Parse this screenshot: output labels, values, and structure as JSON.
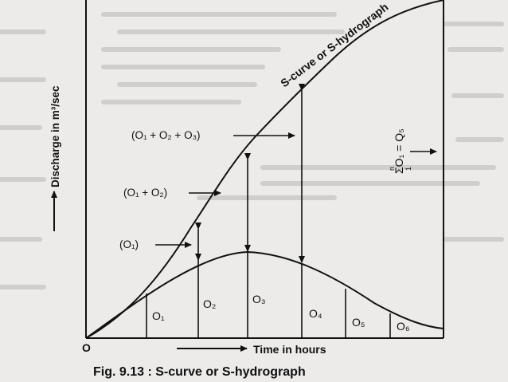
{
  "colors": {
    "ink": "#111111",
    "paper": "#ecebea",
    "faint": "#b9b8b6"
  },
  "diagram": {
    "caption": "Fig. 9.13 : S-curve or S-hydrograph",
    "curve_label": "S-curve or S-hydrograph",
    "y_axis_label": "Discharge in m³/sec",
    "x_axis_label": "Time in hours",
    "origin_label": "O",
    "sum_label": "ΣO₁ = Q₅",
    "sum_index_top": "n",
    "sum_index_bottom": "1",
    "ordinates": [
      "O₁",
      "O₂",
      "O₃",
      "O₄",
      "O₅",
      "O₆"
    ],
    "annotations": [
      "(O₁)",
      "(O₁ + O₂)",
      "(O₁ + O₂ + O₃)"
    ]
  }
}
